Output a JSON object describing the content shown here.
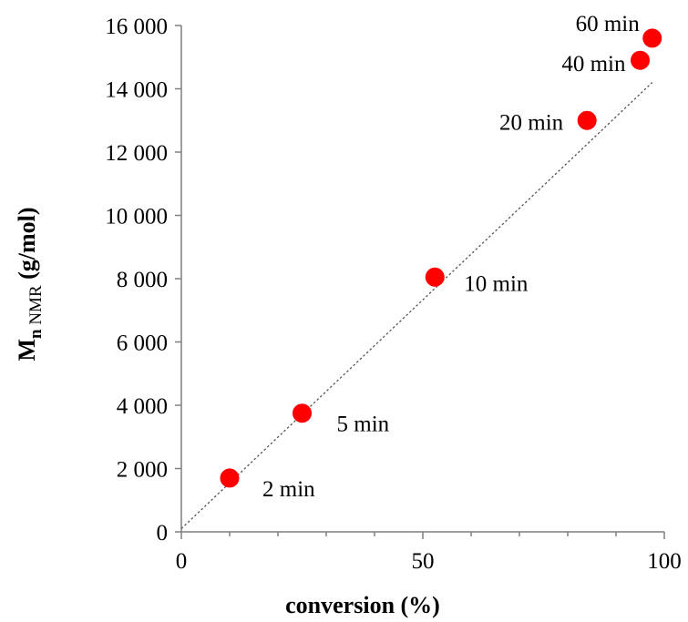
{
  "chart_data": {
    "type": "scatter",
    "title": "",
    "xlabel": "conversion (%)",
    "ylabel": {
      "main": "M",
      "sub_n": "n",
      "sub_nmr": "NMR",
      "units": " (g/mol)"
    },
    "xlim": [
      0,
      100
    ],
    "ylim": [
      0,
      16000
    ],
    "x_ticks": [
      0,
      50,
      100
    ],
    "x_tick_labels": [
      "0",
      "50",
      "100"
    ],
    "y_ticks": [
      0,
      2000,
      4000,
      6000,
      8000,
      10000,
      12000,
      14000,
      16000
    ],
    "y_tick_labels": [
      "0",
      "2 000",
      "4 000",
      "6 000",
      "8 000",
      "10 000",
      "12 000",
      "14 000",
      "16 000"
    ],
    "grid": false,
    "marker_color": "#ff0000",
    "trendline": {
      "style": "dotted",
      "color": "#555555",
      "x": [
        0,
        97.5
      ],
      "y": [
        100,
        14200
      ]
    },
    "series": [
      {
        "points": [
          {
            "x": 10,
            "y": 1700,
            "label": "2 min"
          },
          {
            "x": 25,
            "y": 3750,
            "label": "5 min"
          },
          {
            "x": 52.5,
            "y": 8050,
            "label": "10 min"
          },
          {
            "x": 84,
            "y": 13000,
            "label": "20 min"
          },
          {
            "x": 95,
            "y": 14900,
            "label": "40 min"
          },
          {
            "x": 97.5,
            "y": 15600,
            "label": "60 min"
          }
        ]
      }
    ]
  }
}
